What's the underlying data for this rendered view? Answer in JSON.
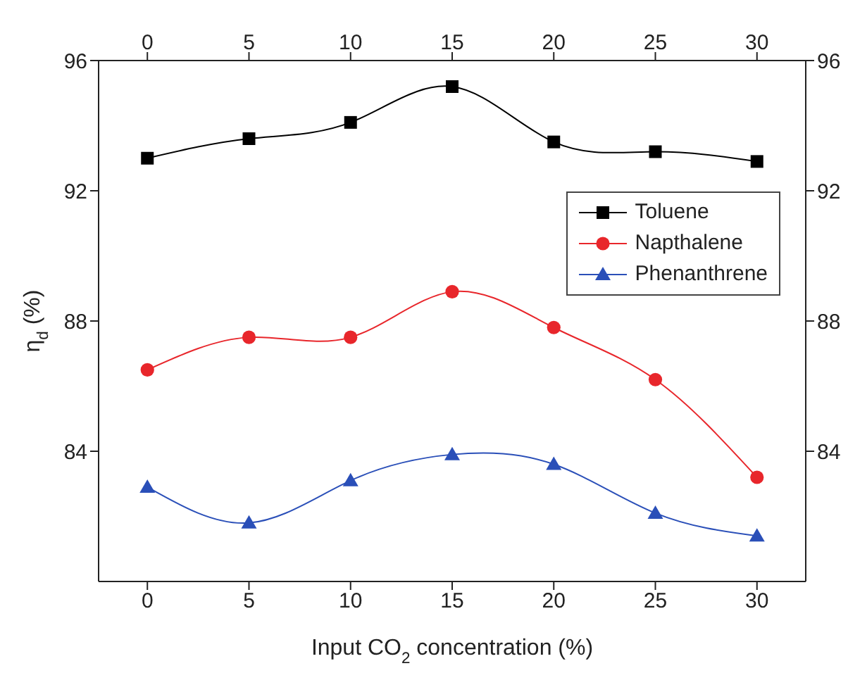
{
  "chart_data": {
    "type": "line",
    "xlabel": "Input CO$_{2}$ concentration (%)",
    "ylabel": "η$_{d}$ (%)",
    "x": [
      0,
      5,
      10,
      15,
      20,
      25,
      30
    ],
    "series": [
      {
        "name": "Toluene",
        "color": "#000000",
        "marker": "square",
        "values": [
          93.0,
          93.6,
          94.1,
          95.2,
          93.5,
          93.2,
          92.9
        ]
      },
      {
        "name": "Napthalene",
        "color": "#e8262b",
        "marker": "circle",
        "values": [
          86.5,
          87.5,
          87.5,
          88.9,
          87.8,
          86.2,
          83.2
        ]
      },
      {
        "name": "Phenanthrene",
        "color": "#2a4fb8",
        "marker": "triangle",
        "values": [
          82.9,
          81.8,
          83.1,
          83.9,
          83.6,
          82.1,
          81.4
        ]
      }
    ],
    "xlim": [
      -2.4,
      32.4
    ],
    "xticks": [
      0,
      5,
      10,
      15,
      20,
      25,
      30
    ],
    "x2lim": [
      -2.4,
      32.4
    ],
    "x2ticks": [
      0,
      5,
      10,
      15,
      20,
      25,
      30
    ],
    "ylim": [
      80,
      96
    ],
    "yticks": [
      84,
      88,
      92,
      96
    ],
    "y2lim": [
      80,
      96
    ],
    "y2ticks": [
      84,
      88,
      92,
      96
    ],
    "legend": "top right",
    "line_style": "solid"
  }
}
